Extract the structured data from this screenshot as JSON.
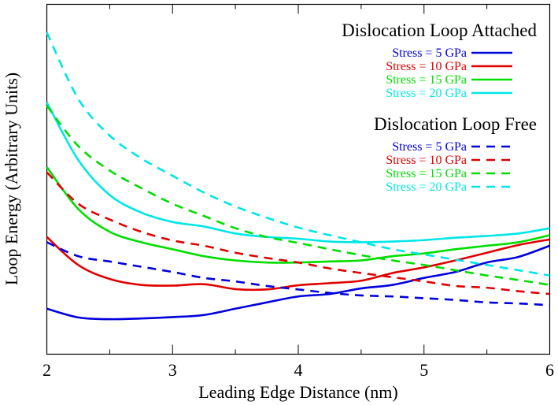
{
  "chart_data": {
    "type": "line",
    "xlabel": "Leading Edge Distance (nm)",
    "ylabel": "Loop Energy (Arbitrary Units)",
    "xlim": [
      2,
      6
    ],
    "ylim": [
      0,
      1
    ],
    "x_ticks": [
      "2",
      "3",
      "4",
      "5",
      "6"
    ],
    "y_tick_labels_shown": false,
    "grid": false,
    "legend_placement": "top-right",
    "legend_groups": [
      {
        "title": "Dislocation Loop Attached",
        "line_style": "solid",
        "entries": [
          {
            "label": "Stress =   5 GPa",
            "color": "#0000dd"
          },
          {
            "label": "Stress = 10 GPa",
            "color": "#e00000"
          },
          {
            "label": "Stress = 15 GPa",
            "color": "#00dd00"
          },
          {
            "label": "Stress = 20 GPa",
            "color": "#00e6e6"
          }
        ]
      },
      {
        "title": "Dislocation Loop Free",
        "line_style": "dashed",
        "entries": [
          {
            "label": "Stress =   5 GPa",
            "color": "#0000dd"
          },
          {
            "label": "Stress = 10 GPa",
            "color": "#e00000"
          },
          {
            "label": "Stress = 15 GPa",
            "color": "#00dd00"
          },
          {
            "label": "Stress = 20 GPa",
            "color": "#00e6e6"
          }
        ]
      }
    ],
    "x": [
      2.0,
      2.25,
      2.5,
      2.75,
      3.0,
      3.25,
      3.5,
      3.75,
      4.0,
      4.25,
      4.5,
      4.75,
      5.0,
      5.25,
      5.5,
      5.75,
      6.0
    ],
    "series": [
      {
        "group": "attached",
        "style": "solid",
        "color": "#0000dd",
        "values": [
          0.13,
          0.105,
          0.1,
          0.102,
          0.106,
          0.112,
          0.13,
          0.148,
          0.165,
          0.172,
          0.188,
          0.198,
          0.218,
          0.235,
          0.262,
          0.278,
          0.31
        ]
      },
      {
        "group": "attached",
        "style": "solid",
        "color": "#e00000",
        "values": [
          0.335,
          0.255,
          0.215,
          0.198,
          0.196,
          0.2,
          0.186,
          0.185,
          0.197,
          0.203,
          0.21,
          0.232,
          0.248,
          0.268,
          0.29,
          0.312,
          0.328
        ]
      },
      {
        "group": "attached",
        "style": "solid",
        "color": "#00dd00",
        "values": [
          0.535,
          0.415,
          0.35,
          0.32,
          0.3,
          0.28,
          0.268,
          0.262,
          0.262,
          0.265,
          0.268,
          0.28,
          0.288,
          0.3,
          0.31,
          0.32,
          0.34
        ]
      },
      {
        "group": "attached",
        "style": "solid",
        "color": "#00e6e6",
        "values": [
          0.72,
          0.555,
          0.455,
          0.405,
          0.378,
          0.365,
          0.345,
          0.335,
          0.33,
          0.322,
          0.32,
          0.322,
          0.326,
          0.333,
          0.338,
          0.345,
          0.36
        ]
      },
      {
        "group": "free",
        "style": "dashed",
        "color": "#0000dd",
        "values": [
          0.32,
          0.28,
          0.265,
          0.25,
          0.235,
          0.218,
          0.208,
          0.195,
          0.185,
          0.175,
          0.168,
          0.165,
          0.16,
          0.155,
          0.148,
          0.145,
          0.14
        ]
      },
      {
        "group": "free",
        "style": "dashed",
        "color": "#e00000",
        "values": [
          0.52,
          0.43,
          0.385,
          0.35,
          0.325,
          0.31,
          0.29,
          0.275,
          0.262,
          0.245,
          0.232,
          0.22,
          0.208,
          0.195,
          0.19,
          0.18,
          0.172
        ]
      },
      {
        "group": "free",
        "style": "dashed",
        "color": "#00dd00",
        "values": [
          0.71,
          0.595,
          0.525,
          0.475,
          0.43,
          0.395,
          0.36,
          0.335,
          0.318,
          0.3,
          0.283,
          0.268,
          0.255,
          0.24,
          0.225,
          0.212,
          0.198
        ]
      },
      {
        "group": "free",
        "style": "dashed",
        "color": "#00e6e6",
        "values": [
          0.92,
          0.73,
          0.625,
          0.56,
          0.51,
          0.462,
          0.422,
          0.39,
          0.362,
          0.34,
          0.32,
          0.3,
          0.285,
          0.27,
          0.255,
          0.24,
          0.225
        ]
      }
    ]
  }
}
